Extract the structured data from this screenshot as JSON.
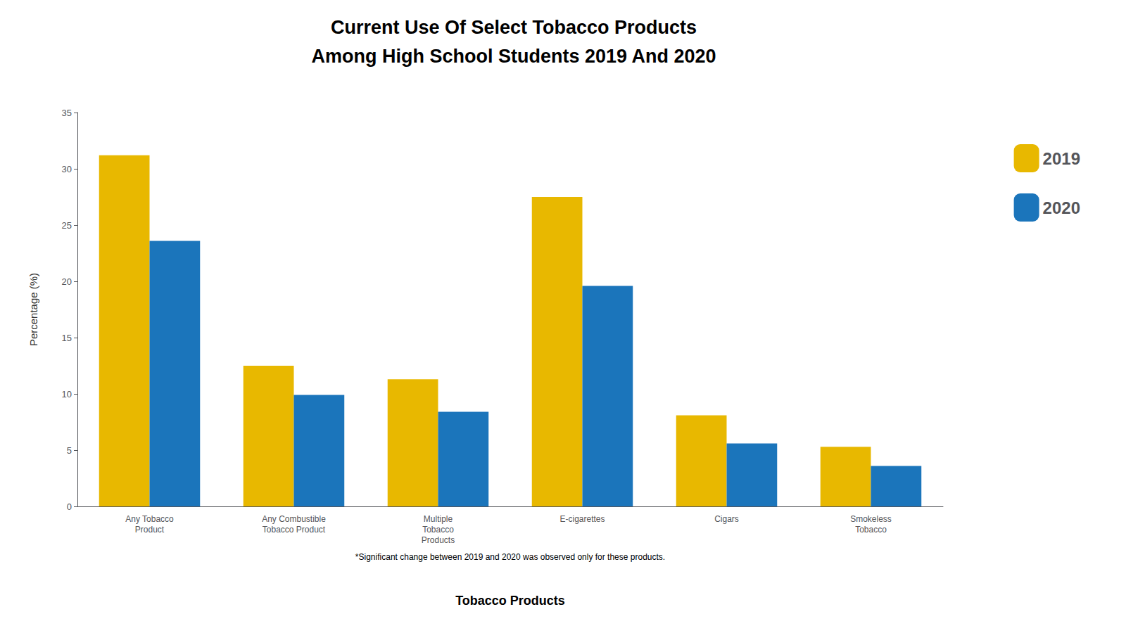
{
  "chart_data": {
    "type": "bar",
    "title": "Current Use Of Select Tobacco Products",
    "subtitle": "Among High School Students 2019 And 2020",
    "categories": [
      "Any Tobacco\nProduct",
      "Any Combustible\nTobacco Product",
      "Multiple\nTobacco\nProducts",
      "E-cigarettes",
      "Cigars",
      "Smokeless\nTobacco"
    ],
    "series": [
      {
        "name": "2019",
        "color": "#E8B800",
        "values": [
          31.2,
          12.5,
          11.3,
          27.5,
          8.1,
          5.3
        ]
      },
      {
        "name": "2020",
        "color": "#1B75BB",
        "values": [
          23.6,
          9.9,
          8.4,
          19.6,
          5.6,
          3.6
        ]
      }
    ],
    "xlabel": "Tobacco Products",
    "ylabel": "Percentage (%)",
    "annotations": [
      "*Significant change between 2019 and 2020 was observed only for these products."
    ],
    "ylim": [
      0,
      35
    ],
    "yticks": [
      0,
      5,
      10,
      15,
      20,
      25,
      30,
      35
    ],
    "grid": false,
    "legend": "right"
  }
}
